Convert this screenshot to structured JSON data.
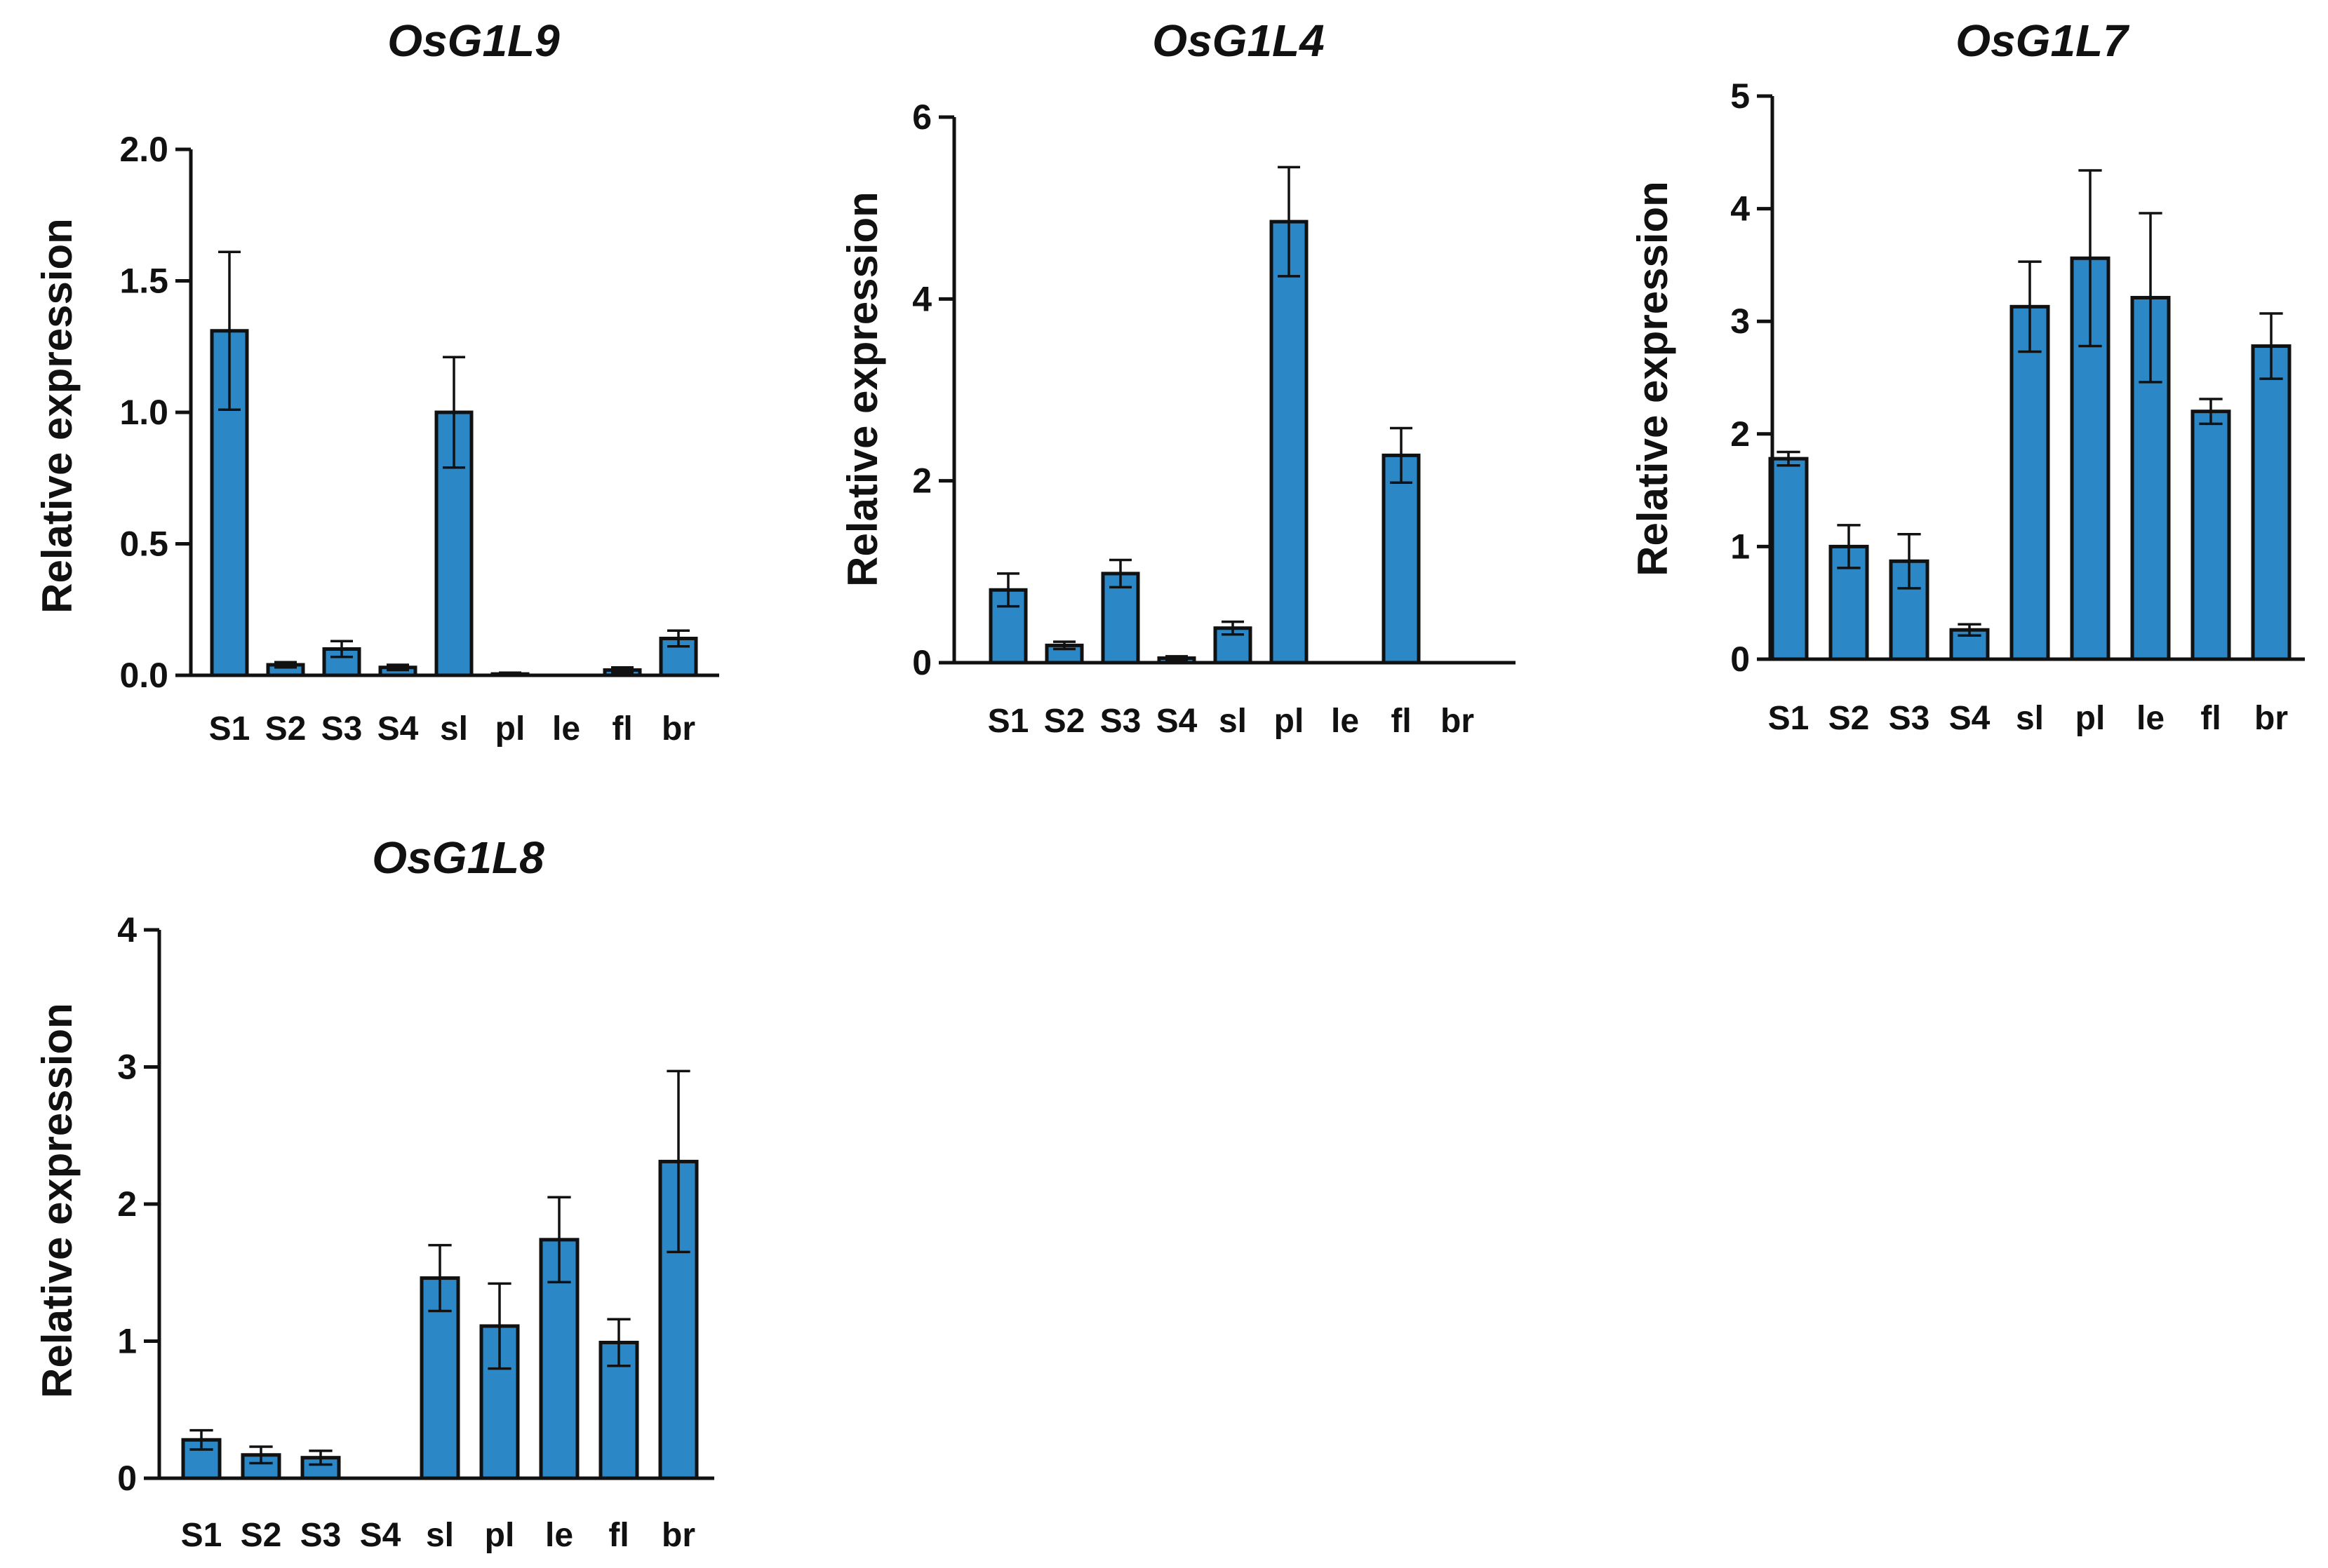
{
  "colors": {
    "bar": "#2b87c6",
    "stroke": "#111111"
  },
  "chart_data": [
    {
      "type": "bar",
      "title": "OsG1L9",
      "ylabel": "Relative expression",
      "xlabel": "",
      "categories": [
        "S1",
        "S2",
        "S3",
        "S4",
        "sl",
        "pl",
        "le",
        "fl",
        "br"
      ],
      "values": [
        1.31,
        0.04,
        0.1,
        0.03,
        1.0,
        0.005,
        0.0,
        0.02,
        0.14
      ],
      "errors": [
        0.3,
        0.01,
        0.03,
        0.01,
        0.21,
        0.005,
        0.0,
        0.01,
        0.03
      ],
      "ylim": [
        0,
        2.0
      ],
      "yticks": [
        "0.0",
        "0.5",
        "1.0",
        "1.5",
        "2.0"
      ]
    },
    {
      "type": "bar",
      "title": "OsG1L4",
      "ylabel": "Relative expression",
      "xlabel": "",
      "categories": [
        "S1",
        "S2",
        "S3",
        "S4",
        "sl",
        "pl",
        "le",
        "fl",
        "br"
      ],
      "values": [
        0.8,
        0.19,
        0.98,
        0.05,
        0.38,
        4.85,
        0.0,
        2.28,
        0.0
      ],
      "errors": [
        0.18,
        0.04,
        0.15,
        0.02,
        0.07,
        0.6,
        0.0,
        0.3,
        0.0
      ],
      "ylim": [
        0,
        6
      ],
      "yticks": [
        "0",
        "2",
        "4",
        "6"
      ]
    },
    {
      "type": "bar",
      "title": "OsG1L7",
      "ylabel": "Relative expression",
      "xlabel": "",
      "categories": [
        "S1",
        "S2",
        "S3",
        "S4",
        "sl",
        "pl",
        "le",
        "fl",
        "br"
      ],
      "values": [
        1.78,
        1.0,
        0.87,
        0.26,
        3.13,
        3.56,
        3.21,
        2.2,
        2.78
      ],
      "errors": [
        0.06,
        0.19,
        0.24,
        0.05,
        0.4,
        0.78,
        0.75,
        0.11,
        0.29
      ],
      "ylim": [
        0,
        5
      ],
      "yticks": [
        "0",
        "1",
        "2",
        "3",
        "4",
        "5"
      ]
    },
    {
      "type": "bar",
      "title": "OsG1L8",
      "ylabel": "Relative expression",
      "xlabel": "",
      "categories": [
        "S1",
        "S2",
        "S3",
        "S4",
        "sl",
        "pl",
        "le",
        "fl",
        "br"
      ],
      "values": [
        0.28,
        0.17,
        0.15,
        0.0,
        1.46,
        1.11,
        1.74,
        0.99,
        2.31
      ],
      "errors": [
        0.07,
        0.06,
        0.05,
        0.0,
        0.24,
        0.31,
        0.31,
        0.17,
        0.66
      ],
      "ylim": [
        0,
        4
      ],
      "yticks": [
        "0",
        "1",
        "2",
        "3",
        "4"
      ]
    }
  ]
}
